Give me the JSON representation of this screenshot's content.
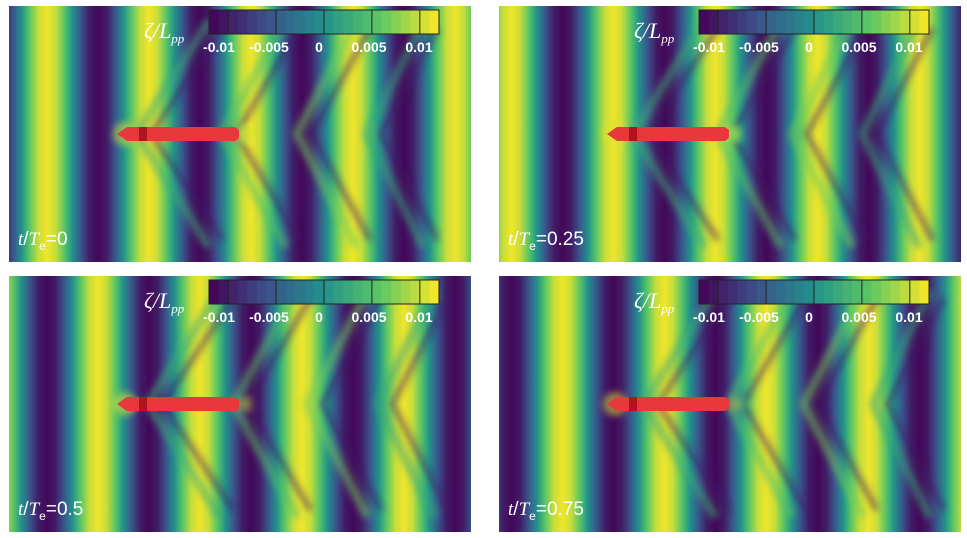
{
  "colormap": {
    "name": "viridis",
    "stops": [
      "#440154",
      "#3b528b",
      "#21918c",
      "#5ec962",
      "#fde725"
    ]
  },
  "colorbar": {
    "variable_num": "ζ",
    "variable_sep": "/",
    "variable_den": "L",
    "variable_sub": "pp",
    "range": [
      -0.012,
      0.012
    ],
    "ticks": [
      "-0.01",
      "-0.005",
      "0",
      "0.005",
      "0.01"
    ],
    "tick_values": [
      -0.01,
      -0.005,
      0,
      0.005,
      0.01
    ]
  },
  "ship": {
    "hull_color": "#e8383b",
    "bow_color": "#b0141c"
  },
  "time_label": {
    "t": "t",
    "slash": "/",
    "T": "T",
    "sub": "e",
    "eq": "="
  },
  "panels": [
    {
      "time_value": "0",
      "phase": 0.0
    },
    {
      "time_value": "0.25",
      "phase": 0.25
    },
    {
      "time_value": "0.5",
      "phase": 0.5
    },
    {
      "time_value": "0.75",
      "phase": 0.75
    }
  ]
}
